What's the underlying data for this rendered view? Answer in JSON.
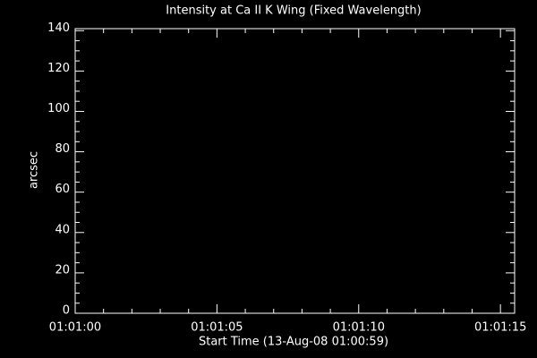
{
  "chart_data": {
    "type": "line",
    "title": "Intensity at Ca II K Wing (Fixed Wavelength)",
    "x_label": "Start Time (13-Aug-08 01:00:59)",
    "y_label": "arcsec",
    "xlim": [
      0,
      15.5
    ],
    "xticks": [
      {
        "value": 0,
        "label": "01:01:00"
      },
      {
        "value": 5,
        "label": "01:01:05"
      },
      {
        "value": 10,
        "label": "01:01:10"
      },
      {
        "value": 15,
        "label": "01:01:15"
      }
    ],
    "ylim": [
      0,
      141
    ],
    "yticks": [
      0,
      20,
      40,
      60,
      80,
      100,
      120,
      140
    ],
    "series": [],
    "grid": false
  }
}
